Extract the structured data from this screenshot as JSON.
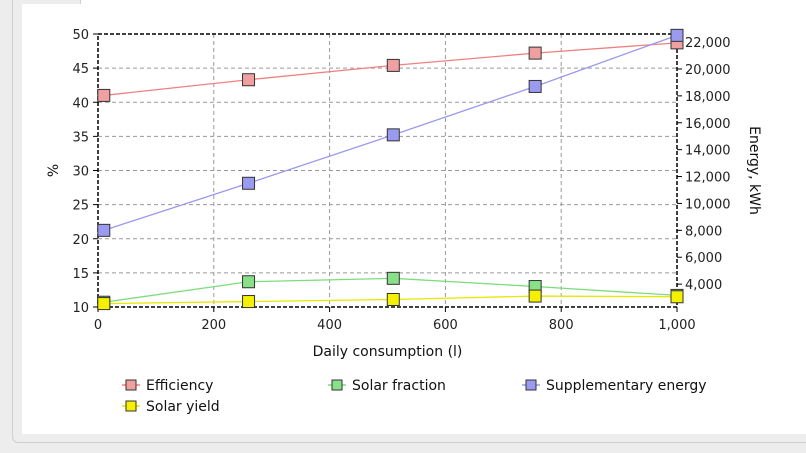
{
  "chart_data": {
    "type": "line",
    "xlabel": "Daily consumption (l)",
    "ylabel": "%",
    "y2label": "Energy, kWh",
    "xlim": [
      0,
      1000
    ],
    "ylim": [
      10,
      50
    ],
    "y2lim": [
      2300,
      22600
    ],
    "xticks": [
      0,
      200,
      400,
      600,
      800,
      1000
    ],
    "xtick_labels": [
      "0",
      "200",
      "400",
      "600",
      "800",
      "1,000"
    ],
    "yticks": [
      10,
      15,
      20,
      25,
      30,
      35,
      40,
      45,
      50
    ],
    "y2ticks": [
      4000,
      6000,
      8000,
      10000,
      12000,
      14000,
      16000,
      18000,
      20000,
      22000
    ],
    "y2tick_labels": [
      "4,000",
      "6,000",
      "8,000",
      "10,000",
      "12,000",
      "14,000",
      "16,000",
      "18,000",
      "20,000",
      "22,000"
    ],
    "grid": true,
    "legend_position": "bottom",
    "series": [
      {
        "name": "Efficiency",
        "axis": "left",
        "color": "#f0a0a0",
        "line_color": "#f08080",
        "x": [
          10,
          260,
          510,
          755,
          1000
        ],
        "values": [
          41.0,
          43.3,
          45.4,
          47.2,
          48.7
        ]
      },
      {
        "name": "Solar fraction",
        "axis": "left",
        "color": "#88e088",
        "line_color": "#7ddc7d",
        "x": [
          10,
          260,
          510,
          755,
          1000
        ],
        "values": [
          10.7,
          13.7,
          14.2,
          13.0,
          11.7
        ]
      },
      {
        "name": "Supplementary energy",
        "axis": "right",
        "color": "#9a9af0",
        "line_color": "#9999ee",
        "x": [
          10,
          260,
          510,
          755,
          1000
        ],
        "values": [
          8000,
          11500,
          15100,
          18700,
          22500
        ]
      },
      {
        "name": "Solar yield",
        "axis": "left",
        "color": "#f5ef00",
        "line_color": "#e8e800",
        "x": [
          10,
          260,
          510,
          755,
          1000
        ],
        "values": [
          10.5,
          10.8,
          11.1,
          11.6,
          11.5
        ]
      }
    ]
  }
}
